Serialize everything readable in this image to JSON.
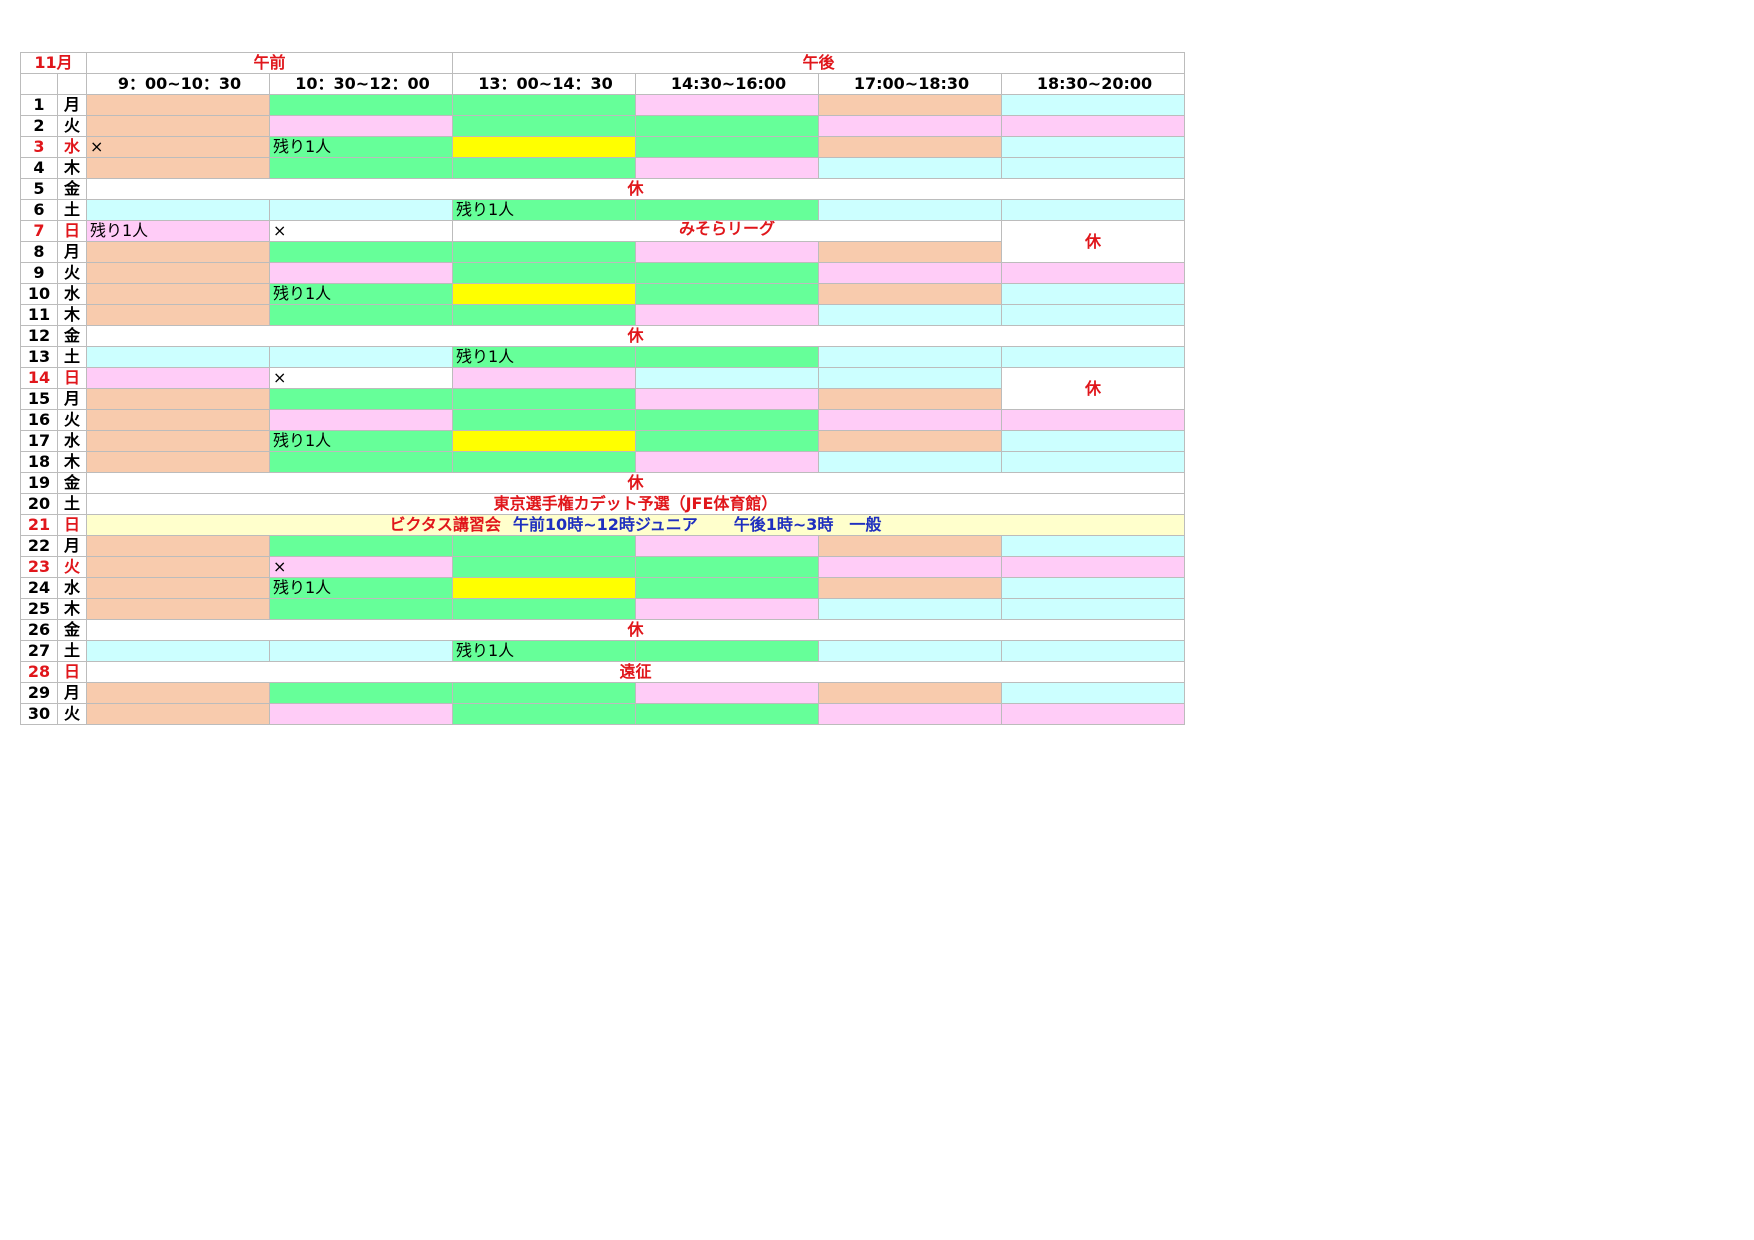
{
  "header": {
    "month": "11月",
    "am": "午前",
    "pm": "午後",
    "times": [
      "9：00~10：30",
      "10：30~12：00",
      "13：00~14：30",
      "14:30~16:00",
      "17:00~18:30",
      "18:30~20:00"
    ]
  },
  "colors": {
    "o": "#f8cbad",
    "g": "#66ff99",
    "p": "#ffccf7",
    "b": "#ccffff",
    "y": "#ffff00",
    "w": "#ffffff"
  },
  "rows": [
    {
      "d": "1",
      "w": "月",
      "c": [
        "o",
        "g",
        "g",
        "p",
        "o",
        "b"
      ]
    },
    {
      "d": "2",
      "w": "火",
      "c": [
        "o",
        "p",
        "g",
        "g",
        "p",
        "p"
      ]
    },
    {
      "d": "3",
      "w": "水",
      "red": true,
      "c": [
        "o",
        "g",
        "y",
        "g",
        "o",
        "b"
      ],
      "t": [
        "×",
        "残り1人",
        "",
        "",
        "",
        ""
      ]
    },
    {
      "d": "4",
      "w": "木",
      "c": [
        "o",
        "g",
        "g",
        "p",
        "b",
        "b"
      ]
    },
    {
      "d": "5",
      "w": "金",
      "note": "休"
    },
    {
      "d": "6",
      "w": "土",
      "c": [
        "b",
        "b",
        "g",
        "g",
        "b",
        "b"
      ],
      "t": [
        "",
        "",
        "残り1人",
        "",
        "",
        ""
      ]
    },
    {
      "d": "7",
      "w": "日",
      "red": true,
      "c": [
        "p",
        "w"
      ],
      "t": [
        "残り1人",
        "×"
      ],
      "mid": "みそらリーグ",
      "rest": "休"
    },
    {
      "d": "8",
      "w": "月",
      "c": [
        "o",
        "g",
        "g",
        "p",
        "o",
        "b"
      ]
    },
    {
      "d": "9",
      "w": "火",
      "c": [
        "o",
        "p",
        "g",
        "g",
        "p",
        "p"
      ]
    },
    {
      "d": "10",
      "w": "水",
      "c": [
        "o",
        "g",
        "y",
        "g",
        "o",
        "b"
      ],
      "t": [
        "",
        "残り1人",
        "",
        "",
        "",
        ""
      ]
    },
    {
      "d": "11",
      "w": "木",
      "c": [
        "o",
        "g",
        "g",
        "p",
        "b",
        "b"
      ]
    },
    {
      "d": "12",
      "w": "金",
      "note": "休"
    },
    {
      "d": "13",
      "w": "土",
      "c": [
        "b",
        "b",
        "g",
        "g",
        "b",
        "b"
      ],
      "t": [
        "",
        "",
        "残り1人",
        "",
        "",
        ""
      ]
    },
    {
      "d": "14",
      "w": "日",
      "red": true,
      "c": [
        "p",
        "w",
        "p",
        "b",
        "b"
      ],
      "t": [
        "",
        "×",
        "",
        "",
        ""
      ],
      "rest": "休"
    },
    {
      "d": "15",
      "w": "月",
      "c": [
        "o",
        "g",
        "g",
        "p",
        "o",
        "b"
      ]
    },
    {
      "d": "16",
      "w": "火",
      "c": [
        "o",
        "p",
        "g",
        "g",
        "p",
        "p"
      ]
    },
    {
      "d": "17",
      "w": "水",
      "c": [
        "o",
        "g",
        "y",
        "g",
        "o",
        "b"
      ],
      "t": [
        "",
        "残り1人",
        "",
        "",
        "",
        ""
      ]
    },
    {
      "d": "18",
      "w": "木",
      "c": [
        "o",
        "g",
        "g",
        "p",
        "b",
        "b"
      ]
    },
    {
      "d": "19",
      "w": "金",
      "note": "休"
    },
    {
      "d": "20",
      "w": "土",
      "note": "東京選手権カデット予選（JFE体育館）"
    },
    {
      "d": "21",
      "w": "日",
      "red": true,
      "seminar": {
        "title": "ビクタス講習会",
        "junior": "午前10時~12時ジュニア",
        "general": "午後1時~3時　一般"
      }
    },
    {
      "d": "22",
      "w": "月",
      "c": [
        "o",
        "g",
        "g",
        "p",
        "o",
        "b"
      ]
    },
    {
      "d": "23",
      "w": "火",
      "red": true,
      "c": [
        "o",
        "p",
        "g",
        "g",
        "p",
        "p"
      ],
      "t": [
        "",
        "×",
        "",
        "",
        "",
        ""
      ]
    },
    {
      "d": "24",
      "w": "水",
      "c": [
        "o",
        "g",
        "y",
        "g",
        "o",
        "b"
      ],
      "t": [
        "",
        "残り1人",
        "",
        "",
        "",
        ""
      ]
    },
    {
      "d": "25",
      "w": "木",
      "c": [
        "o",
        "g",
        "g",
        "p",
        "b",
        "b"
      ]
    },
    {
      "d": "26",
      "w": "金",
      "note": "休"
    },
    {
      "d": "27",
      "w": "土",
      "c": [
        "b",
        "b",
        "g",
        "g",
        "b",
        "b"
      ],
      "t": [
        "",
        "",
        "残り1人",
        "",
        "",
        ""
      ]
    },
    {
      "d": "28",
      "w": "日",
      "red": true,
      "note": "遠征"
    },
    {
      "d": "29",
      "w": "月",
      "c": [
        "o",
        "g",
        "g",
        "p",
        "o",
        "b"
      ]
    },
    {
      "d": "30",
      "w": "火",
      "c": [
        "o",
        "p",
        "g",
        "g",
        "p",
        "p"
      ]
    }
  ]
}
